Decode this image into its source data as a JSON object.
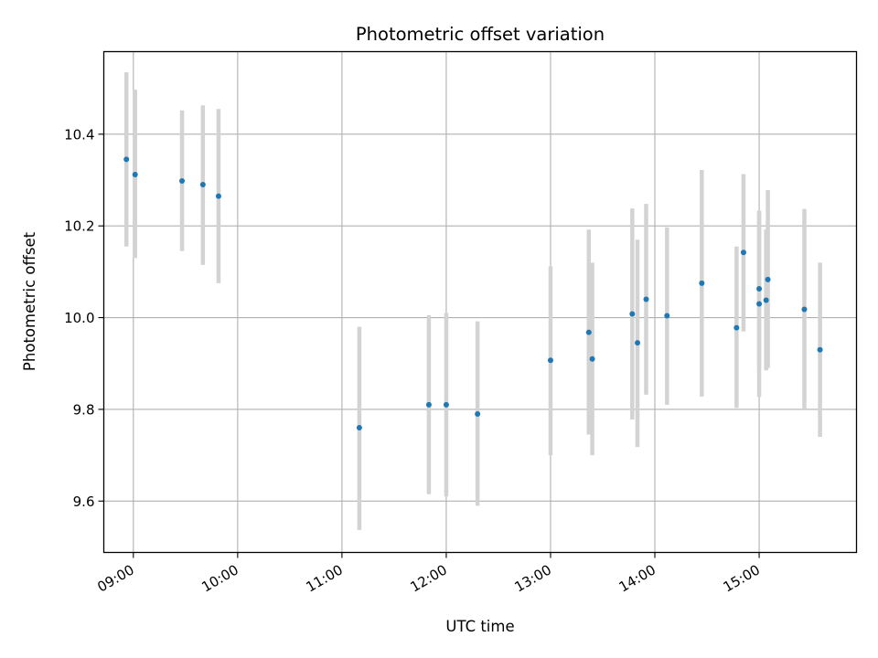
{
  "chart_data": {
    "type": "scatter",
    "title": "Photometric offset variation",
    "xlabel": "UTC time",
    "ylabel": "Photometric offset",
    "xlim": [
      "08:43",
      "15:56"
    ],
    "ylim": [
      9.488,
      10.58
    ],
    "x_ticks": [
      "09:00",
      "10:00",
      "11:00",
      "12:00",
      "13:00",
      "14:00",
      "15:00"
    ],
    "y_ticks": [
      "9.6",
      "9.8",
      "10.0",
      "10.2",
      "10.4"
    ],
    "grid": true,
    "marker_color": "#1f77b4",
    "errorbar_color": "#d3d3d3",
    "points": [
      {
        "x": "08:56",
        "y": 10.345,
        "yerr_low": 10.155,
        "yerr_high": 10.535
      },
      {
        "x": "09:01",
        "y": 10.312,
        "yerr_low": 10.13,
        "yerr_high": 10.497
      },
      {
        "x": "09:28",
        "y": 10.298,
        "yerr_low": 10.145,
        "yerr_high": 10.452
      },
      {
        "x": "09:40",
        "y": 10.29,
        "yerr_low": 10.115,
        "yerr_high": 10.463
      },
      {
        "x": "09:49",
        "y": 10.265,
        "yerr_low": 10.075,
        "yerr_high": 10.455
      },
      {
        "x": "11:10",
        "y": 9.76,
        "yerr_low": 9.537,
        "yerr_high": 9.98
      },
      {
        "x": "11:50",
        "y": 9.81,
        "yerr_low": 9.615,
        "yerr_high": 10.005
      },
      {
        "x": "12:00",
        "y": 9.81,
        "yerr_low": 9.61,
        "yerr_high": 10.01
      },
      {
        "x": "12:18",
        "y": 9.79,
        "yerr_low": 9.59,
        "yerr_high": 9.992
      },
      {
        "x": "13:00",
        "y": 9.907,
        "yerr_low": 9.7,
        "yerr_high": 10.112
      },
      {
        "x": "13:22",
        "y": 9.968,
        "yerr_low": 9.745,
        "yerr_high": 10.192
      },
      {
        "x": "13:24",
        "y": 9.91,
        "yerr_low": 9.7,
        "yerr_high": 10.12
      },
      {
        "x": "13:47",
        "y": 10.008,
        "yerr_low": 9.778,
        "yerr_high": 10.238
      },
      {
        "x": "13:50",
        "y": 9.945,
        "yerr_low": 9.718,
        "yerr_high": 10.17
      },
      {
        "x": "13:55",
        "y": 10.04,
        "yerr_low": 9.832,
        "yerr_high": 10.248
      },
      {
        "x": "14:07",
        "y": 10.004,
        "yerr_low": 9.81,
        "yerr_high": 10.197
      },
      {
        "x": "14:27",
        "y": 10.075,
        "yerr_low": 9.828,
        "yerr_high": 10.322
      },
      {
        "x": "14:47",
        "y": 9.978,
        "yerr_low": 9.803,
        "yerr_high": 10.155
      },
      {
        "x": "14:51",
        "y": 10.142,
        "yerr_low": 9.97,
        "yerr_high": 10.313
      },
      {
        "x": "15:00",
        "y": 10.03,
        "yerr_low": 9.827,
        "yerr_high": 10.233
      },
      {
        "x": "15:00",
        "y": 10.063,
        "yerr_low": 9.89,
        "yerr_high": 10.232
      },
      {
        "x": "15:04",
        "y": 10.038,
        "yerr_low": 9.885,
        "yerr_high": 10.192
      },
      {
        "x": "15:05",
        "y": 10.083,
        "yerr_low": 9.89,
        "yerr_high": 10.278
      },
      {
        "x": "15:26",
        "y": 10.018,
        "yerr_low": 9.8,
        "yerr_high": 10.237
      },
      {
        "x": "15:35",
        "y": 9.93,
        "yerr_low": 9.74,
        "yerr_high": 10.12
      }
    ]
  }
}
